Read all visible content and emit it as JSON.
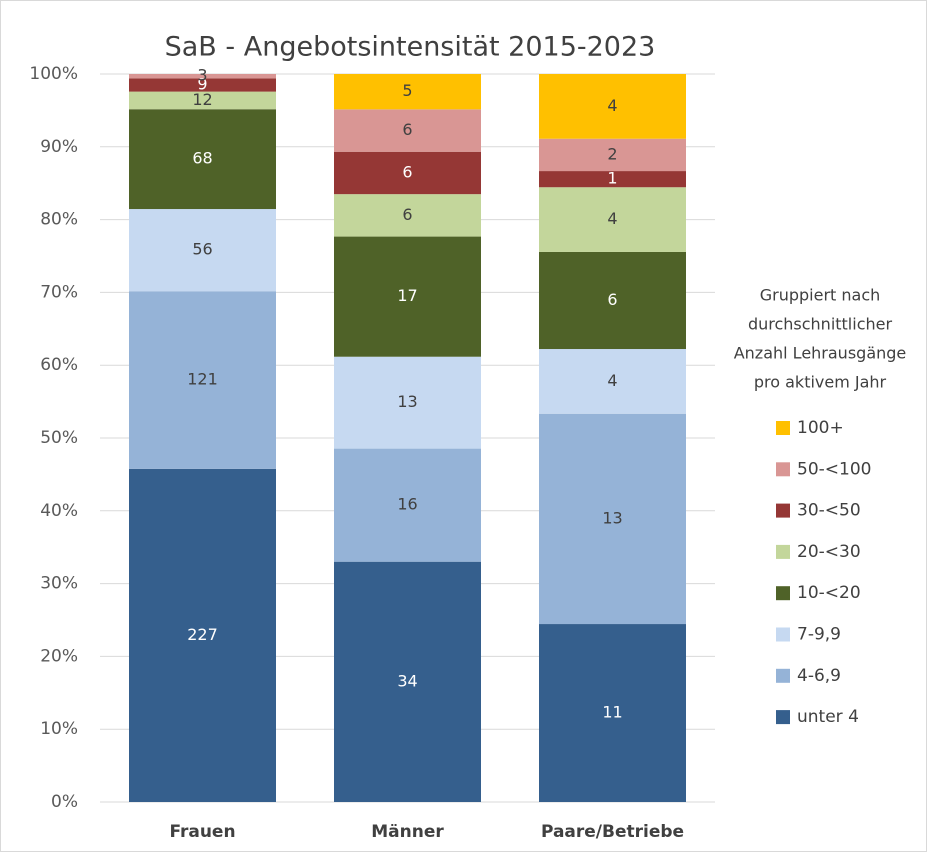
{
  "chart_data": {
    "type": "bar",
    "stack": "percent",
    "title": "SaB - Angebotsintensität 2015-2023",
    "categories": [
      "Frauen",
      "Männer",
      "Paare/Betriebe"
    ],
    "series": [
      {
        "name": "unter 4",
        "color": "#355f8d",
        "values": [
          227,
          34,
          11
        ]
      },
      {
        "name": "4-6,9",
        "color": "#95b3d7",
        "values": [
          121,
          16,
          13
        ]
      },
      {
        "name": "7-9,9",
        "color": "#c6d9f1",
        "values": [
          56,
          13,
          4
        ]
      },
      {
        "name": "10-<20",
        "color": "#4f6228",
        "values": [
          68,
          17,
          6
        ]
      },
      {
        "name": "20-<30",
        "color": "#c3d69b",
        "values": [
          12,
          6,
          4
        ]
      },
      {
        "name": "30-<50",
        "color": "#953735",
        "values": [
          9,
          6,
          1
        ]
      },
      {
        "name": "50-<100",
        "color": "#d99694",
        "values": [
          3,
          6,
          2
        ]
      },
      {
        "name": "100+",
        "color": "#ffc000",
        "values": [
          null,
          5,
          4
        ]
      }
    ],
    "legend_title": [
      "Gruppiert nach",
      "durchschnittlicher",
      "Anzahl Lehrausgänge",
      "pro aktivem Jahr"
    ],
    "ylim": [
      0,
      100
    ],
    "yticks": [
      {
        "value": 0,
        "label": "0%"
      },
      {
        "value": 10,
        "label": "10%"
      },
      {
        "value": 20,
        "label": "20%"
      },
      {
        "value": 30,
        "label": "30%"
      },
      {
        "value": 40,
        "label": "40%"
      },
      {
        "value": 50,
        "label": "50%"
      },
      {
        "value": 60,
        "label": "60%"
      },
      {
        "value": 70,
        "label": "70%"
      },
      {
        "value": 80,
        "label": "80%"
      },
      {
        "value": 90,
        "label": "90%"
      },
      {
        "value": 100,
        "label": "100%"
      }
    ],
    "grid": true,
    "legend": "right"
  }
}
